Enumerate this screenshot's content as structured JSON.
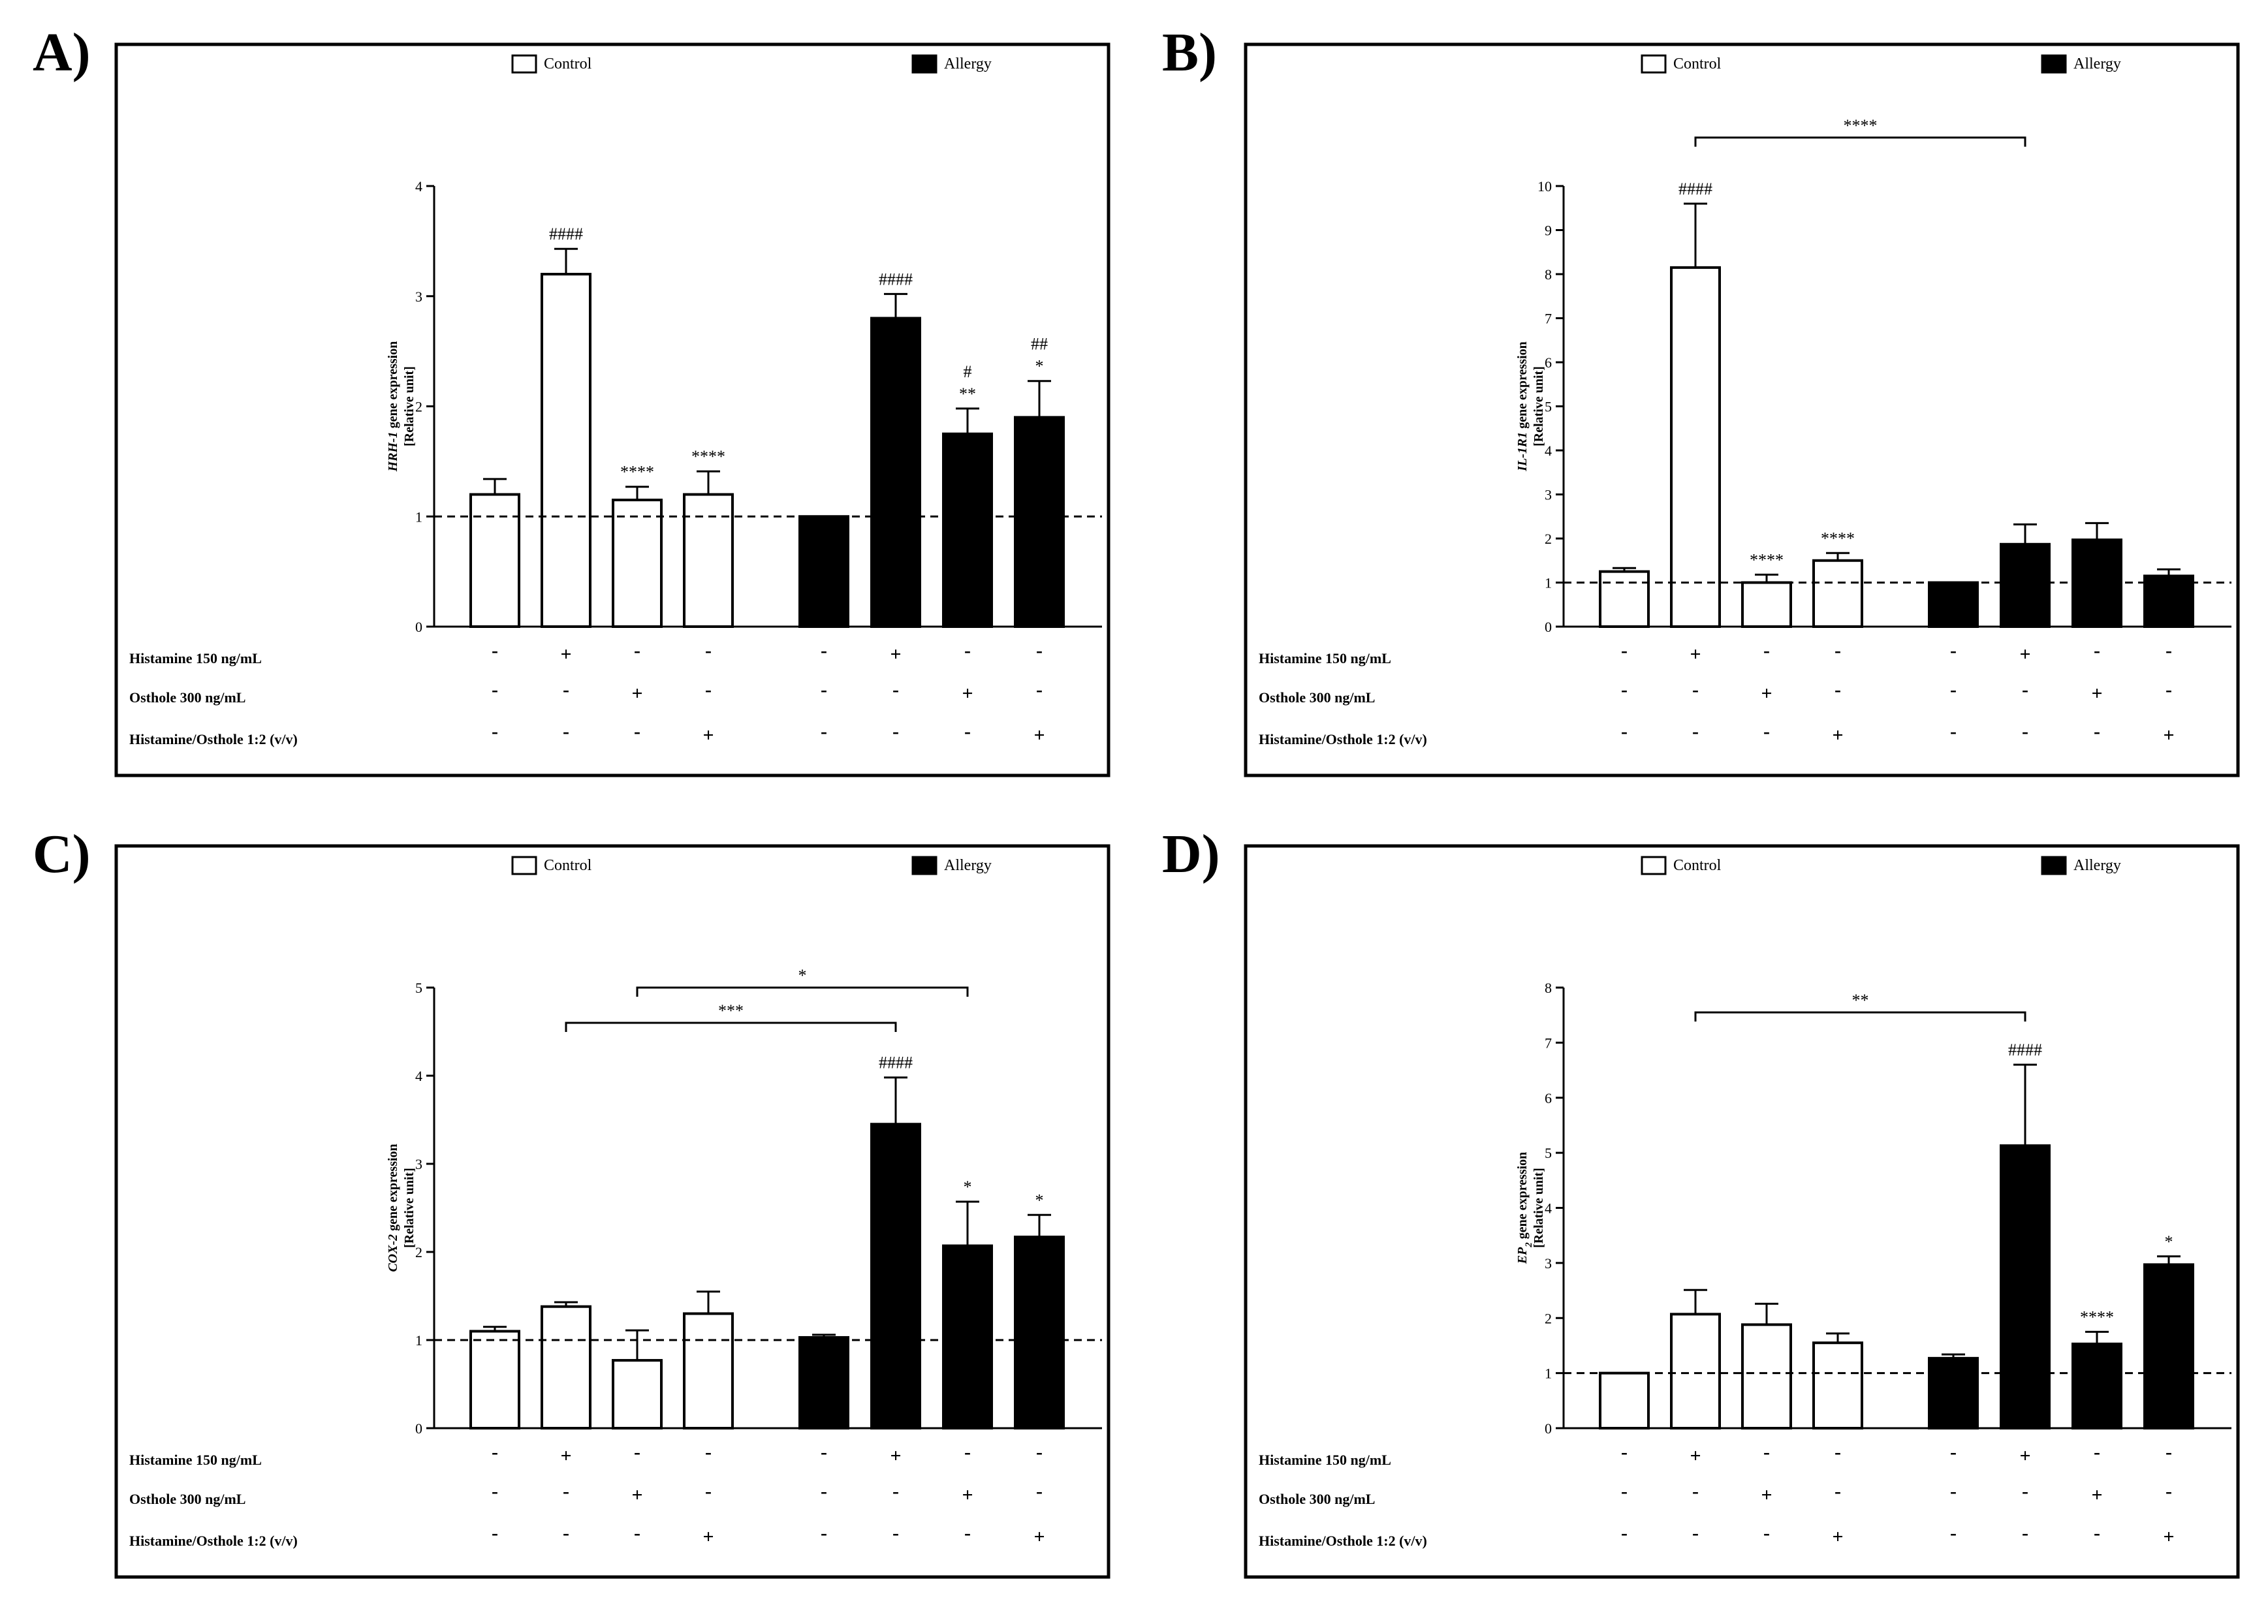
{
  "legend": {
    "control": "Control",
    "allergy": "Allergy"
  },
  "treatments": [
    {
      "label": "Histamine  150 ng/mL",
      "signs": [
        "-",
        "+",
        "-",
        "-",
        "-",
        "+",
        "-",
        "-"
      ]
    },
    {
      "label": "Osthole 300 ng/mL",
      "signs": [
        "-",
        "-",
        "+",
        "-",
        "-",
        "-",
        "+",
        "-"
      ]
    },
    {
      "label": "Histamine/Osthole 1:2 (v/v)",
      "signs": [
        "-",
        "-",
        "-",
        "+",
        "-",
        "-",
        "-",
        "+"
      ]
    }
  ],
  "colors": {
    "control_fill": "#ffffff",
    "allergy_fill": "#000000",
    "stroke": "#000000"
  },
  "chart_data": [
    {
      "panel": "A)",
      "type": "bar",
      "gene": "HRH-1",
      "ylabel_gene": "HRH-1",
      "ylabel_suffix": " gene expression",
      "ylabel_unit": "[Relative unit]",
      "ylim": [
        0,
        4
      ],
      "yticks": [
        0,
        1,
        2,
        3,
        4
      ],
      "reference_line": 1,
      "series": [
        {
          "name": "Control",
          "values": [
            1.2,
            3.2,
            1.15,
            1.2
          ],
          "errors": [
            0.14,
            0.23,
            0.12,
            0.21
          ],
          "annotations": [
            [],
            [
              "####"
            ],
            [
              "****"
            ],
            [
              "****"
            ]
          ]
        },
        {
          "name": "Allergy",
          "values": [
            1.0,
            2.8,
            1.75,
            1.9
          ],
          "errors": [
            0.0,
            0.22,
            0.23,
            0.33
          ],
          "annotations": [
            [],
            [
              "####"
            ],
            [
              "**",
              "#"
            ],
            [
              "*",
              "##"
            ]
          ]
        }
      ],
      "brackets": []
    },
    {
      "panel": "B)",
      "type": "bar",
      "gene": "IL-1R1",
      "ylabel_gene": "IL-1R1",
      "ylabel_suffix": " gene expression",
      "ylabel_unit": "[Relative unit]",
      "ylim": [
        0,
        10
      ],
      "yticks": [
        0,
        1,
        2,
        3,
        4,
        5,
        6,
        7,
        8,
        9,
        10
      ],
      "reference_line": 1,
      "series": [
        {
          "name": "Control",
          "values": [
            1.25,
            8.15,
            1.0,
            1.5
          ],
          "errors": [
            0.08,
            1.45,
            0.18,
            0.17
          ],
          "annotations": [
            [],
            [
              "####"
            ],
            [
              "****"
            ],
            [
              "****"
            ]
          ]
        },
        {
          "name": "Allergy",
          "values": [
            1.0,
            1.87,
            1.97,
            1.15
          ],
          "errors": [
            0.0,
            0.45,
            0.38,
            0.15
          ],
          "annotations": [
            [],
            [],
            [],
            []
          ]
        }
      ],
      "brackets": [
        {
          "from": 1,
          "to": 5,
          "y": 11.1,
          "label": "****"
        }
      ]
    },
    {
      "panel": "C)",
      "type": "bar",
      "gene": "COX-2",
      "ylabel_gene": "COX-2",
      "ylabel_suffix": " gene expression",
      "ylabel_unit": "[Relative unit]",
      "ylim": [
        0,
        5
      ],
      "yticks": [
        0,
        1,
        2,
        3,
        4,
        5
      ],
      "reference_line": 1,
      "series": [
        {
          "name": "Control",
          "values": [
            1.1,
            1.38,
            0.77,
            1.3
          ],
          "errors": [
            0.05,
            0.05,
            0.34,
            0.25
          ],
          "annotations": [
            [],
            [],
            [],
            []
          ]
        },
        {
          "name": "Allergy",
          "values": [
            1.03,
            3.45,
            2.07,
            2.17
          ],
          "errors": [
            0.03,
            0.53,
            0.5,
            0.25
          ],
          "annotations": [
            [],
            [
              "####"
            ],
            [
              "*"
            ],
            [
              "*"
            ]
          ]
        }
      ],
      "brackets": [
        {
          "from": 2,
          "to": 6,
          "y": 5.0,
          "label": "*"
        },
        {
          "from": 1,
          "to": 5,
          "y": 4.6,
          "label": "***"
        }
      ]
    },
    {
      "panel": "D)",
      "type": "bar",
      "gene": "EP2",
      "ylabel_gene": "EP",
      "ylabel_sub": "2",
      "ylabel_suffix": " gene expression",
      "ylabel_unit": "[Relative unit]",
      "ylim": [
        0,
        8
      ],
      "yticks": [
        0,
        1,
        2,
        3,
        4,
        5,
        6,
        7,
        8
      ],
      "reference_line": 1,
      "series": [
        {
          "name": "Control",
          "values": [
            1.0,
            2.07,
            1.88,
            1.55
          ],
          "errors": [
            0.0,
            0.44,
            0.38,
            0.17
          ],
          "annotations": [
            [],
            [],
            [],
            []
          ]
        },
        {
          "name": "Allergy",
          "values": [
            1.27,
            5.13,
            1.53,
            2.97
          ],
          "errors": [
            0.07,
            1.47,
            0.22,
            0.15
          ],
          "annotations": [
            [],
            [
              "####"
            ],
            [
              "****"
            ],
            [
              "*"
            ]
          ]
        }
      ],
      "brackets": [
        {
          "from": 1,
          "to": 5,
          "y": 7.55,
          "label": "**"
        }
      ]
    }
  ]
}
